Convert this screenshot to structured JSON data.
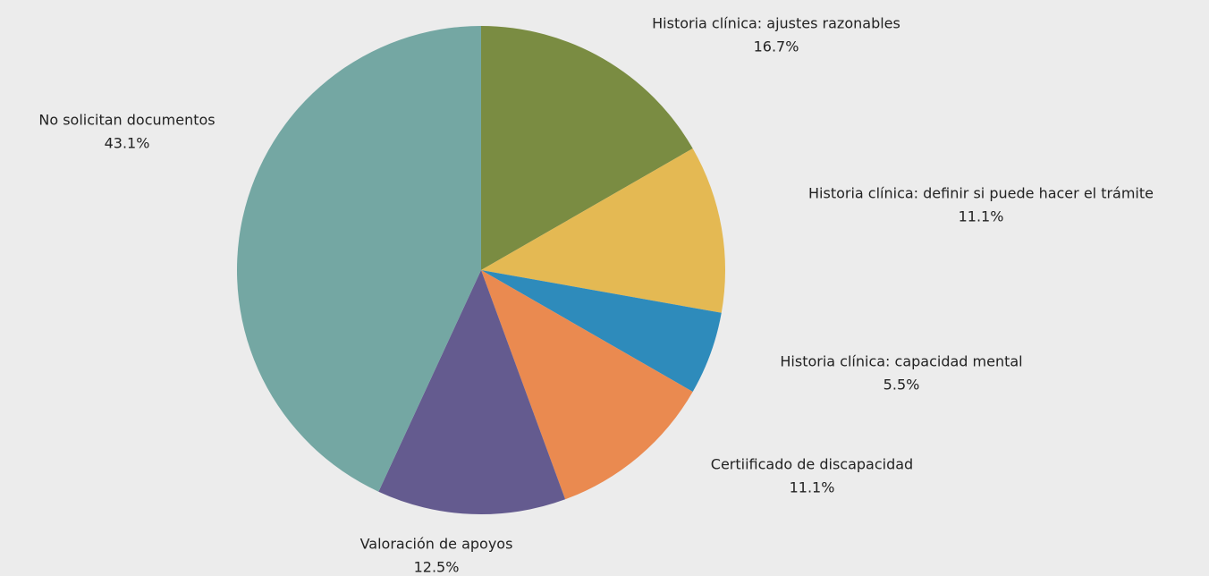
{
  "chart_data": {
    "type": "pie",
    "categories": [
      "Historia clínica: ajustes razonables",
      "Historia clínica: definir si puede hacer el trámite",
      "Historia clínica: capacidad mental",
      "Certiificado de discapacidad",
      "Valoración de apoyos",
      "No solicitan documentos"
    ],
    "values": [
      16.7,
      11.1,
      5.5,
      11.1,
      12.5,
      43.1
    ],
    "value_labels": [
      "16.7%",
      "11.1%",
      "5.5%",
      "11.1%",
      "12.5%",
      "43.1%"
    ],
    "colors": [
      "#7a8c42",
      "#e4b953",
      "#2e8bbb",
      "#ea8a50",
      "#645b8f",
      "#74a7a3"
    ]
  }
}
